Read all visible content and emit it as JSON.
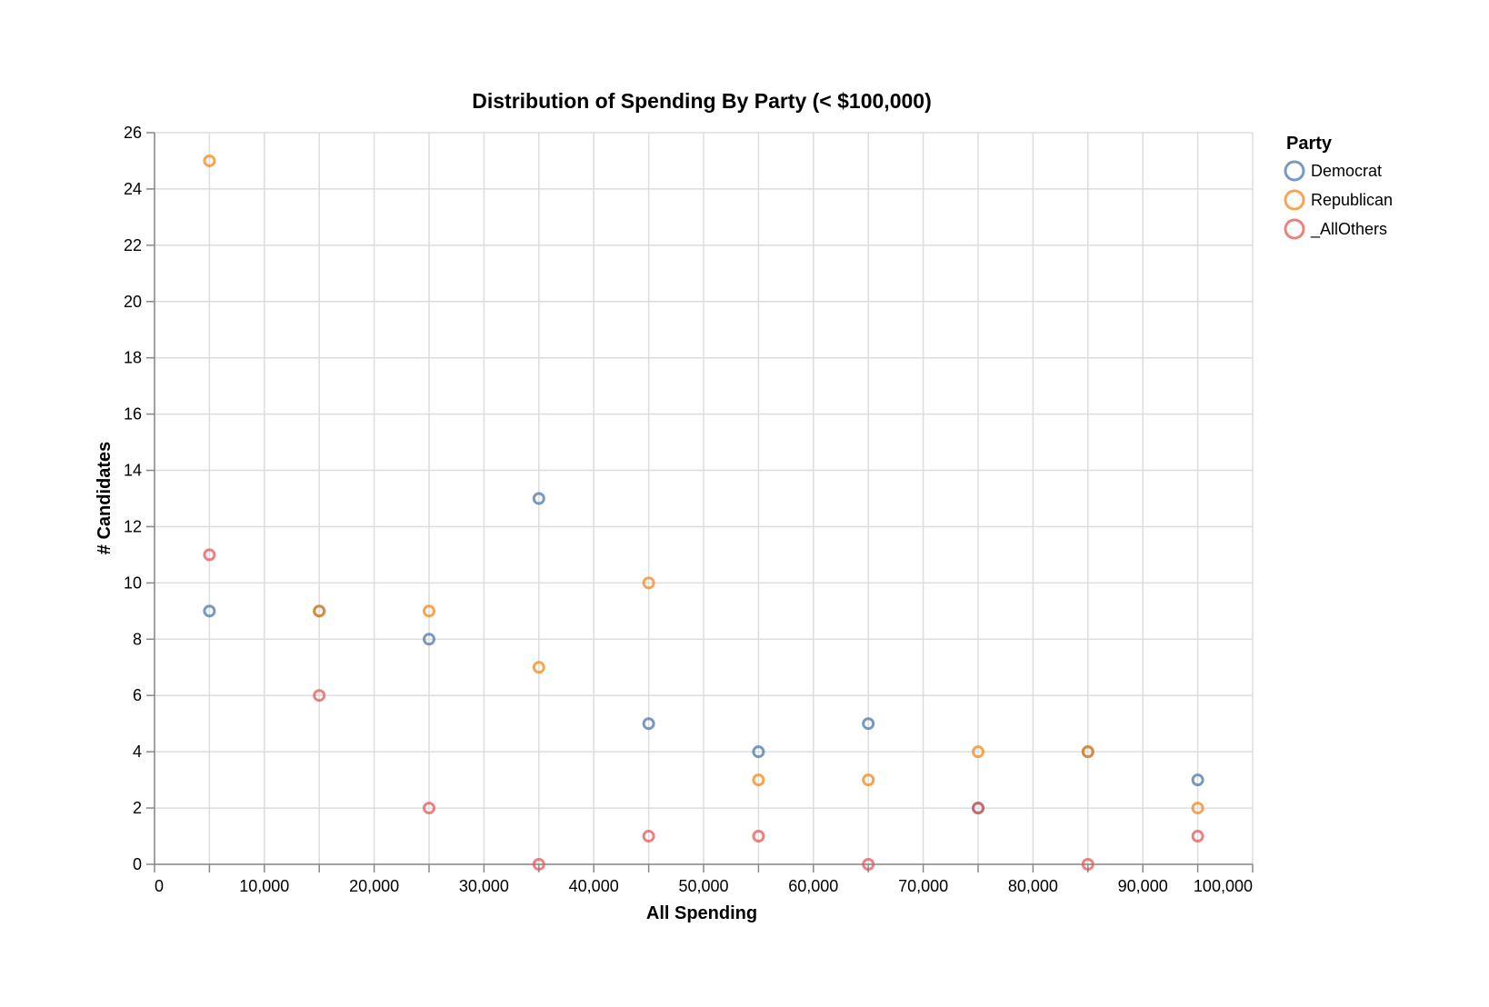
{
  "chart_data": {
    "type": "scatter",
    "title": "Distribution of Spending By Party (< $100,000)",
    "xlabel": "All Spending",
    "ylabel": "# Candidates",
    "xlim": [
      0,
      100000
    ],
    "ylim": [
      0,
      26
    ],
    "x_ticks": [
      "0",
      "10,000",
      "20,000",
      "30,000",
      "40,000",
      "50,000",
      "60,000",
      "70,000",
      "80,000",
      "90,000",
      "100,000"
    ],
    "y_ticks": [
      "0",
      "2",
      "4",
      "6",
      "8",
      "10",
      "12",
      "14",
      "16",
      "18",
      "20",
      "22",
      "24",
      "26"
    ],
    "grid": true,
    "legend": {
      "title": "Party",
      "placement": "right"
    },
    "series": [
      {
        "name": "Democrat",
        "color": "#4c78a8",
        "points": [
          [
            5000,
            9
          ],
          [
            15000,
            9
          ],
          [
            25000,
            8
          ],
          [
            35000,
            13
          ],
          [
            45000,
            5
          ],
          [
            55000,
            4
          ],
          [
            65000,
            5
          ],
          [
            75000,
            2
          ],
          [
            85000,
            4
          ],
          [
            95000,
            3
          ]
        ]
      },
      {
        "name": "Republican",
        "color": "#f58518",
        "points": [
          [
            5000,
            25
          ],
          [
            15000,
            9
          ],
          [
            25000,
            9
          ],
          [
            35000,
            7
          ],
          [
            45000,
            10
          ],
          [
            55000,
            3
          ],
          [
            65000,
            3
          ],
          [
            75000,
            4
          ],
          [
            85000,
            4
          ],
          [
            95000,
            2
          ]
        ]
      },
      {
        "name": "_AllOthers",
        "color": "#e45756",
        "points": [
          [
            5000,
            11
          ],
          [
            15000,
            6
          ],
          [
            25000,
            2
          ],
          [
            35000,
            0
          ],
          [
            45000,
            1
          ],
          [
            55000,
            1
          ],
          [
            65000,
            0
          ],
          [
            75000,
            2
          ],
          [
            85000,
            0
          ],
          [
            95000,
            1
          ]
        ]
      }
    ]
  }
}
